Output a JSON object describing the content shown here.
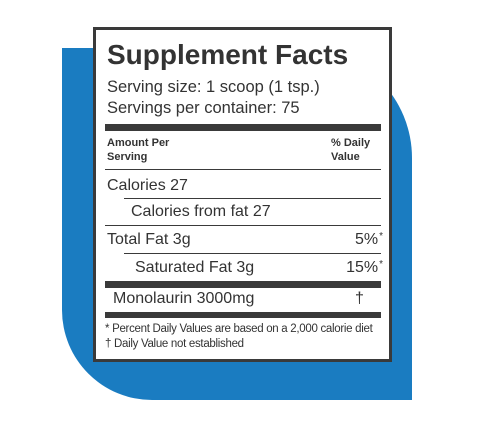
{
  "title": "Supplement Facts",
  "serving_size": "Serving size:  1 scoop (1 tsp.)",
  "servings_per_container": "Servings per container: 75",
  "header": {
    "amount": [
      "Amount Per",
      "Serving"
    ],
    "daily_value": [
      "% Daily",
      "Value"
    ]
  },
  "rows": [
    {
      "label": "Calories 27"
    },
    {
      "label": "Calories from fat  27"
    },
    {
      "label": "Total Fat 3g",
      "dv": "5%",
      "mark": "*"
    },
    {
      "label": "Saturated Fat 3g",
      "dv": "15%",
      "mark": "*"
    },
    {
      "label": "Monolaurin 3000mg",
      "mark": "†"
    }
  ],
  "footnotes": [
    "* Percent Daily Values are based on a 2,000 calorie diet",
    "† Daily Value not established"
  ]
}
